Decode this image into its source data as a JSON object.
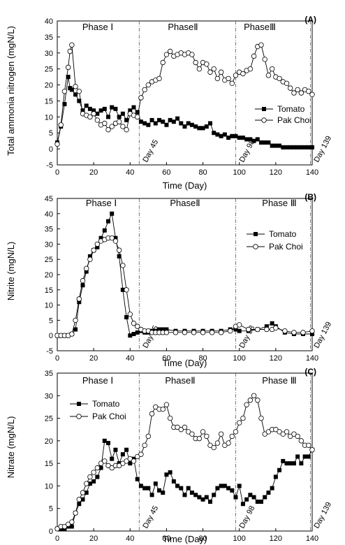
{
  "chart_data": [
    {
      "panel": "(A)",
      "type": "line",
      "xlabel": "Time (Day)",
      "ylabel": "Total ammonia nitrogen (mgN/L)",
      "xlim": [
        0,
        140
      ],
      "ylim": [
        -5,
        40
      ],
      "xticks": [
        "0",
        "20",
        "40",
        "60",
        "80",
        "100",
        "120",
        "140"
      ],
      "yticks": [
        "-5",
        "0",
        "5",
        "10",
        "15",
        "20",
        "25",
        "30",
        "35",
        "40"
      ],
      "grid": false,
      "legend_position": "right",
      "phases": [
        "Phase Ⅰ",
        "PhaseⅡ",
        "PhaseⅢ"
      ],
      "dividers": [
        {
          "x": 45,
          "label": "Day 45"
        },
        {
          "x": 98,
          "label": "Day 98"
        },
        {
          "x": 139,
          "label": "Day 139"
        }
      ],
      "x": [
        0,
        2,
        4,
        6,
        7,
        8,
        10,
        12,
        14,
        16,
        18,
        20,
        22,
        24,
        26,
        28,
        30,
        32,
        34,
        36,
        38,
        40,
        42,
        44,
        46,
        48,
        50,
        52,
        54,
        56,
        58,
        60,
        62,
        64,
        66,
        68,
        70,
        72,
        74,
        76,
        78,
        80,
        82,
        84,
        86,
        88,
        90,
        92,
        94,
        96,
        98,
        100,
        102,
        104,
        106,
        108,
        110,
        112,
        114,
        116,
        118,
        120,
        122,
        124,
        126,
        128,
        130,
        132,
        134,
        136,
        138,
        140
      ],
      "series": [
        {
          "name": "Tomato",
          "marker": "filled-square",
          "values": [
            2,
            7,
            14,
            22.5,
            19,
            18.5,
            17,
            15,
            12,
            13.5,
            12.5,
            12,
            11,
            12,
            12.5,
            10,
            13,
            12.5,
            10,
            11,
            9,
            12,
            13,
            11.5,
            8.5,
            8,
            7.5,
            9,
            8,
            9,
            8.5,
            7.5,
            9,
            8.5,
            9.5,
            8,
            7,
            8,
            7.5,
            7,
            6.5,
            6.5,
            7,
            8,
            5,
            4.5,
            4,
            4.5,
            3.5,
            4,
            4,
            3.5,
            3.5,
            3,
            3,
            2.5,
            3,
            2,
            2,
            2,
            1,
            1,
            1,
            0.5,
            0.5,
            0.5,
            0.5,
            0.5,
            0.5,
            0.5,
            0.5,
            0.5
          ]
        },
        {
          "name": "Pak Choi",
          "marker": "open-circle",
          "values": [
            1.5,
            7.5,
            18,
            25.5,
            30.5,
            32.5,
            19.5,
            18,
            11,
            10.5,
            10,
            11,
            9,
            7.5,
            8,
            6,
            7,
            8,
            8.5,
            7,
            6,
            11,
            10.5,
            10,
            16,
            18.5,
            20,
            21,
            21.5,
            22,
            27,
            29.5,
            30.5,
            29,
            29.5,
            30,
            29.5,
            30,
            29.5,
            27,
            25,
            27,
            26.5,
            24,
            25,
            22,
            24,
            21.5,
            22,
            20.5,
            23,
            24,
            23.5,
            24.5,
            25,
            29,
            32,
            32.5,
            28,
            23,
            25,
            22.5,
            22,
            21,
            20.5,
            19,
            17.5,
            18.5,
            17.5,
            18.5,
            18,
            17
          ]
        }
      ]
    },
    {
      "panel": "(B)",
      "type": "line",
      "xlabel": "Time (Day)",
      "ylabel": "Nitrite (mgN/L)",
      "xlim": [
        0,
        140
      ],
      "ylim": [
        -5,
        45
      ],
      "xticks": [
        "0",
        "20",
        "40",
        "60",
        "80",
        "100",
        "120",
        "140"
      ],
      "yticks": [
        "-5",
        "0",
        "5",
        "10",
        "15",
        "20",
        "25",
        "30",
        "35",
        "40",
        "45"
      ],
      "grid": false,
      "legend_position": "right",
      "phases": [
        "Phase Ⅰ",
        "PhaseⅡ",
        "Phase Ⅲ"
      ],
      "dividers": [
        {
          "x": 45,
          "label": "Day 45"
        },
        {
          "x": 98,
          "label": "Day 98"
        },
        {
          "x": 139,
          "label": "Day 139"
        }
      ],
      "x": [
        0,
        2,
        4,
        6,
        8,
        10,
        12,
        14,
        16,
        18,
        20,
        22,
        24,
        26,
        28,
        30,
        32,
        34,
        36,
        38,
        40,
        42,
        44,
        46,
        48,
        50,
        52,
        54,
        56,
        58,
        60,
        65,
        70,
        75,
        80,
        85,
        90,
        95,
        98,
        100,
        105,
        110,
        115,
        118,
        120,
        125,
        130,
        135,
        140
      ],
      "series": [
        {
          "name": "Tomato",
          "marker": "filled-square",
          "values": [
            0,
            0,
            0,
            0,
            0.5,
            2,
            11,
            16.5,
            21,
            26,
            28,
            29,
            32,
            34.5,
            37.5,
            40,
            32,
            26,
            15,
            6,
            0,
            0.5,
            1,
            1.5,
            1,
            1,
            1.5,
            1.5,
            2,
            2,
            2,
            1.5,
            1.5,
            1.5,
            1.5,
            1.5,
            1.5,
            2,
            2,
            1.5,
            1.5,
            2,
            3,
            4,
            3,
            1,
            0.5,
            0.5,
            0.5
          ]
        },
        {
          "name": "Pak Choi",
          "marker": "open-circle",
          "values": [
            0,
            0,
            0,
            0,
            0.5,
            5,
            12,
            18,
            22,
            25,
            28,
            30,
            31,
            31.5,
            32,
            32,
            31,
            28,
            23,
            15,
            7,
            4,
            3,
            2,
            1.5,
            1.5,
            1,
            1,
            1,
            1,
            1,
            1,
            1,
            1,
            1,
            1,
            1,
            1.5,
            3,
            3.5,
            2,
            2,
            2,
            2,
            2.5,
            1.5,
            1,
            1,
            1.5
          ]
        }
      ]
    },
    {
      "panel": "(C)",
      "type": "line",
      "xlabel": "Time (Day)",
      "ylabel": "Nitrate (mgN/L)",
      "xlim": [
        0,
        140
      ],
      "ylim": [
        0,
        35
      ],
      "xticks": [
        "0",
        "20",
        "40",
        "60",
        "80",
        "100",
        "120",
        "140"
      ],
      "yticks": [
        "0",
        "5",
        "10",
        "15",
        "20",
        "25",
        "30",
        "35"
      ],
      "grid": false,
      "legend_position": "top-left",
      "phases": [
        "Phase Ⅰ",
        "PhaseⅡ",
        "Phase Ⅲ"
      ],
      "dividers": [
        {
          "x": 45,
          "label": "Day 45"
        },
        {
          "x": 98,
          "label": "Day 98"
        },
        {
          "x": 139,
          "label": "Day 139"
        }
      ],
      "x": [
        0,
        2,
        4,
        6,
        8,
        10,
        12,
        14,
        16,
        18,
        20,
        22,
        24,
        26,
        28,
        30,
        32,
        34,
        36,
        38,
        40,
        42,
        44,
        46,
        48,
        50,
        52,
        54,
        56,
        58,
        60,
        62,
        64,
        66,
        68,
        70,
        72,
        74,
        76,
        78,
        80,
        82,
        84,
        86,
        88,
        90,
        92,
        94,
        96,
        98,
        100,
        102,
        104,
        106,
        108,
        110,
        112,
        114,
        116,
        118,
        120,
        122,
        124,
        126,
        128,
        130,
        132,
        134,
        136,
        138,
        140
      ],
      "series": [
        {
          "name": "Tomato",
          "marker": "filled-square",
          "values": [
            0.5,
            0.5,
            0.5,
            1,
            1,
            4,
            6,
            7,
            8.5,
            10.5,
            11,
            12,
            14,
            20,
            19.5,
            16,
            18,
            15,
            17,
            18,
            15,
            16,
            11.5,
            10,
            9.5,
            9.5,
            8,
            10.5,
            9,
            8.5,
            12.5,
            13,
            11,
            10,
            9.5,
            8,
            9.5,
            8.5,
            8,
            7.5,
            7,
            7.5,
            6.5,
            8,
            9.5,
            10,
            10,
            9.5,
            9,
            7.5,
            10,
            6,
            7,
            8,
            7.5,
            6.5,
            6.5,
            7.5,
            8.5,
            9.5,
            12,
            13.5,
            15.5,
            15,
            15,
            15,
            16.5,
            15,
            16.5,
            16.5,
            18
          ]
        },
        {
          "name": "Pak Choi",
          "marker": "open-circle",
          "values": [
            0.5,
            1,
            1,
            1.5,
            2,
            4,
            7,
            8.5,
            10.5,
            12,
            13,
            14,
            15,
            15.5,
            14.5,
            14,
            14.5,
            14.5,
            15,
            15.5,
            16,
            15.5,
            16.5,
            17,
            19,
            21,
            26,
            27.5,
            27,
            27,
            28,
            25,
            23,
            23,
            22.5,
            23,
            22,
            21.5,
            20.5,
            20.5,
            22,
            21,
            19,
            18.5,
            19.5,
            21.5,
            19,
            19.5,
            21,
            22,
            24,
            25,
            28,
            29,
            30,
            29,
            25,
            21.5,
            22,
            22.5,
            22.5,
            22,
            21.5,
            22,
            21,
            21.5,
            21,
            20,
            19,
            19,
            18
          ]
        }
      ]
    }
  ]
}
